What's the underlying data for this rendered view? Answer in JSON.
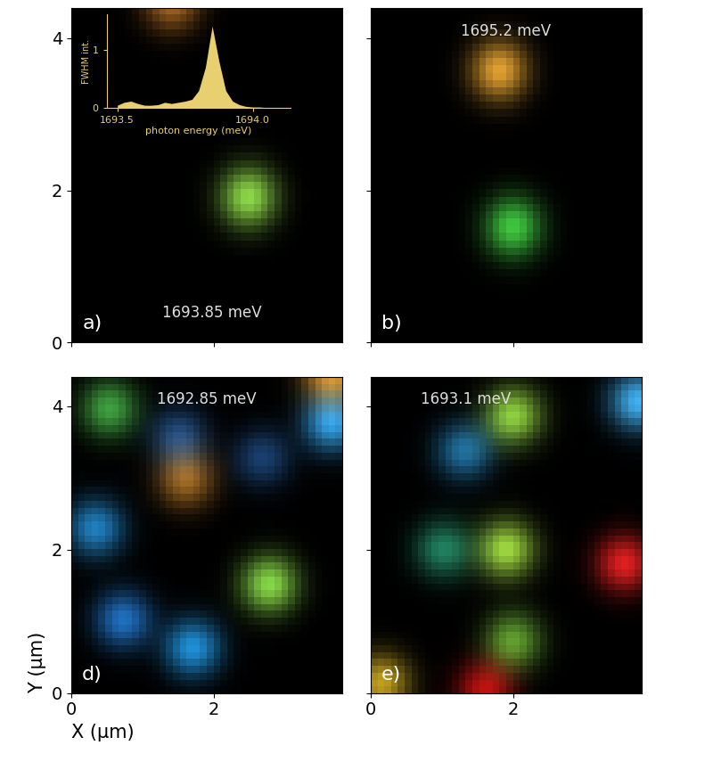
{
  "chart_data": [
    {
      "type": "image",
      "annotations": [
        "a)",
        "1693.85 meV"
      ],
      "xlim": [
        0,
        3.8
      ],
      "ylim": [
        0,
        4.4
      ],
      "xticks": [
        0,
        2
      ],
      "yticks": [
        0,
        2,
        4
      ],
      "tick_labels": "y",
      "spots": [
        {
          "x": 2.5,
          "y": 1.9,
          "color": "#8ed84a"
        },
        {
          "x": 1.4,
          "y": 4.55,
          "color": "#b06a20"
        }
      ],
      "inset": {
        "type": "area",
        "xlabel": "photon energy (meV)",
        "ylabel": "FWHM int.",
        "x": [
          1693.5,
          1693.525,
          1693.55,
          1693.575,
          1693.6,
          1693.625,
          1693.65,
          1693.675,
          1693.7,
          1693.725,
          1693.75,
          1693.775,
          1693.8,
          1693.825,
          1693.85,
          1693.875,
          1693.9,
          1693.925,
          1693.95,
          1693.975,
          1694.0,
          1694.025,
          1694.05,
          1694.075,
          1694.1
        ],
        "values": [
          0.05,
          0.1,
          0.12,
          0.08,
          0.05,
          0.05,
          0.06,
          0.1,
          0.08,
          0.1,
          0.12,
          0.15,
          0.3,
          0.7,
          1.4,
          0.8,
          0.3,
          0.12,
          0.06,
          0.03,
          0.02,
          0.02,
          0.01,
          0.01,
          0.01
        ],
        "xlim": [
          1693.46,
          1694.14
        ],
        "ylim": [
          0,
          1.6
        ],
        "xticks": [
          1693.5,
          1694.0
        ],
        "yticks": [
          0,
          1
        ],
        "color": "#e8d070"
      }
    },
    {
      "type": "image",
      "annotations": [
        "b)",
        "1695.2 meV"
      ],
      "xlim": [
        0,
        3.8
      ],
      "ylim": [
        0,
        4.4
      ],
      "xticks": [
        0,
        2
      ],
      "yticks": [
        0,
        2,
        4
      ],
      "tick_labels": false,
      "spots": [
        {
          "x": 1.8,
          "y": 3.6,
          "color": "#e0a030"
        },
        {
          "x": 2.0,
          "y": 1.5,
          "color": "#40c840"
        }
      ]
    },
    {
      "type": "image",
      "annotations": [
        "d)",
        "1692.85 meV"
      ],
      "xlim": [
        0,
        3.8
      ],
      "ylim": [
        0,
        4.4
      ],
      "xticks": [
        0,
        2
      ],
      "yticks": [
        0,
        2,
        4
      ],
      "tick_labels": true,
      "xlabel": "X (µm)",
      "ylabel": "Y (µm)",
      "spots": [
        {
          "x": 0.5,
          "y": 4.0,
          "color": "#40a040"
        },
        {
          "x": 0.3,
          "y": 2.3,
          "color": "#2080c0"
        },
        {
          "x": 0.7,
          "y": 1.0,
          "color": "#2070c0"
        },
        {
          "x": 1.7,
          "y": 0.6,
          "color": "#2090d8"
        },
        {
          "x": 1.6,
          "y": 3.0,
          "color": "#a06820"
        },
        {
          "x": 1.5,
          "y": 3.6,
          "color": "#204c80"
        },
        {
          "x": 2.7,
          "y": 3.3,
          "color": "#1a4070"
        },
        {
          "x": 3.7,
          "y": 3.8,
          "color": "#30a0e8"
        },
        {
          "x": 2.8,
          "y": 1.5,
          "color": "#88d848"
        },
        {
          "x": 3.7,
          "y": 4.5,
          "color": "#e09020"
        }
      ]
    },
    {
      "type": "image",
      "annotations": [
        "e)",
        "1693.1 meV"
      ],
      "xlim": [
        0,
        3.8
      ],
      "ylim": [
        0,
        4.4
      ],
      "xticks": [
        0,
        2
      ],
      "yticks": [
        0,
        2,
        4
      ],
      "tick_labels": "x",
      "spots": [
        {
          "x": 2.0,
          "y": 3.9,
          "color": "#90d040"
        },
        {
          "x": 1.3,
          "y": 3.4,
          "color": "#2070a0"
        },
        {
          "x": 1.9,
          "y": 2.0,
          "color": "#a0d840"
        },
        {
          "x": 1.0,
          "y": 2.0,
          "color": "#208060"
        },
        {
          "x": 3.6,
          "y": 1.8,
          "color": "#e02020"
        },
        {
          "x": 2.0,
          "y": 0.7,
          "color": "#60a030"
        },
        {
          "x": 1.6,
          "y": 0.0,
          "color": "#c01010"
        },
        {
          "x": 3.8,
          "y": 4.1,
          "color": "#40b0f0"
        },
        {
          "x": 0.1,
          "y": 0.1,
          "color": "#c0a020"
        }
      ]
    }
  ]
}
